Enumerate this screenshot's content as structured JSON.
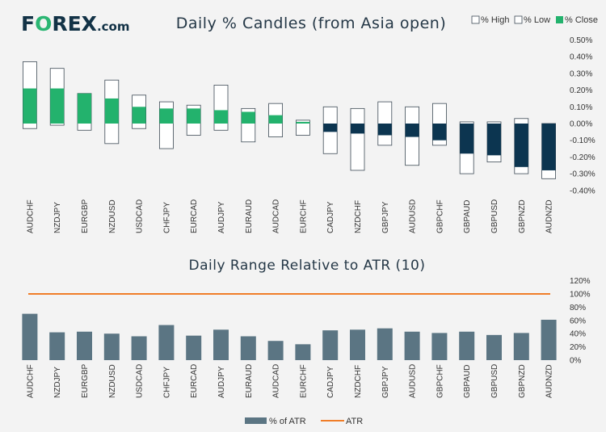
{
  "brand": {
    "logo_f": "F",
    "logo_o": "O",
    "logo_rest": "REX",
    "logo_dotcom": ".com"
  },
  "colors": {
    "close_up": "#23b26d",
    "close_down": "#0c3550",
    "range_box": "#ffffff",
    "range_border": "#3d4a55",
    "atr_bar": "#5b7583",
    "atr_line": "#f07d28",
    "text": "#243746"
  },
  "chart_data": [
    {
      "type": "bar",
      "title": "Daily % Candles (from Asia open)",
      "legend": {
        "placement": "top-right",
        "items": [
          "% High",
          "% Low",
          "% Close"
        ]
      },
      "categories": [
        "AUDCHF",
        "NZDJPY",
        "EURGBP",
        "NZDUSD",
        "USDCAD",
        "CHFJPY",
        "EURCAD",
        "AUDJPY",
        "EURAUD",
        "AUDCAD",
        "EURCHF",
        "CADJPY",
        "NZDCHF",
        "GBPJPY",
        "AUDUSD",
        "GBPCHF",
        "GBPAUD",
        "GBPUSD",
        "GBPNZD",
        "AUDNZD"
      ],
      "series": [
        {
          "name": "% High",
          "values": [
            0.37,
            0.33,
            0.18,
            0.26,
            0.17,
            0.13,
            0.11,
            0.23,
            0.09,
            0.12,
            0.02,
            0.1,
            0.09,
            0.13,
            0.1,
            0.12,
            0.01,
            0.01,
            0.03,
            0.0
          ]
        },
        {
          "name": "% Low",
          "values": [
            -0.03,
            -0.01,
            -0.04,
            -0.12,
            -0.03,
            -0.15,
            -0.07,
            -0.04,
            -0.11,
            -0.08,
            -0.07,
            -0.18,
            -0.28,
            -0.13,
            -0.25,
            -0.13,
            -0.3,
            -0.23,
            -0.3,
            -0.33
          ]
        },
        {
          "name": "% Close",
          "values": [
            0.21,
            0.21,
            0.18,
            0.15,
            0.1,
            0.09,
            0.09,
            0.08,
            0.07,
            0.05,
            0.01,
            -0.05,
            -0.06,
            -0.07,
            -0.08,
            -0.1,
            -0.18,
            -0.19,
            -0.26,
            -0.28
          ]
        }
      ],
      "y_ticks": [
        "0.50%",
        "0.40%",
        "0.30%",
        "0.20%",
        "0.10%",
        "0.00%",
        "-0.10%",
        "-0.20%",
        "-0.30%",
        "-0.40%"
      ],
      "ylim": [
        -0.4,
        0.5
      ],
      "grid": false
    },
    {
      "type": "bar",
      "title": "Daily Range Relative to ATR (10)",
      "legend": {
        "placement": "bottom",
        "items": [
          "% of ATR",
          "ATR"
        ]
      },
      "categories": [
        "AUDCHF",
        "NZDJPY",
        "EURGBP",
        "NZDUSD",
        "USDCAD",
        "CHFJPY",
        "EURCAD",
        "AUDJPY",
        "EURAUD",
        "AUDCAD",
        "EURCHF",
        "CADJPY",
        "NZDCHF",
        "GBPJPY",
        "AUDUSD",
        "GBPCHF",
        "GBPAUD",
        "GBPUSD",
        "GBPNZD",
        "AUDNZD"
      ],
      "series": [
        {
          "name": "% of ATR",
          "values": [
            70,
            42,
            43,
            40,
            36,
            53,
            37,
            46,
            36,
            29,
            24,
            45,
            46,
            48,
            43,
            41,
            43,
            38,
            41,
            61
          ]
        },
        {
          "name": "ATR",
          "values": [
            100,
            100,
            100,
            100,
            100,
            100,
            100,
            100,
            100,
            100,
            100,
            100,
            100,
            100,
            100,
            100,
            100,
            100,
            100,
            100
          ]
        }
      ],
      "y_ticks": [
        "120%",
        "100%",
        "80%",
        "60%",
        "40%",
        "20%",
        "0%"
      ],
      "ylim": [
        0,
        120
      ],
      "grid": false
    }
  ]
}
